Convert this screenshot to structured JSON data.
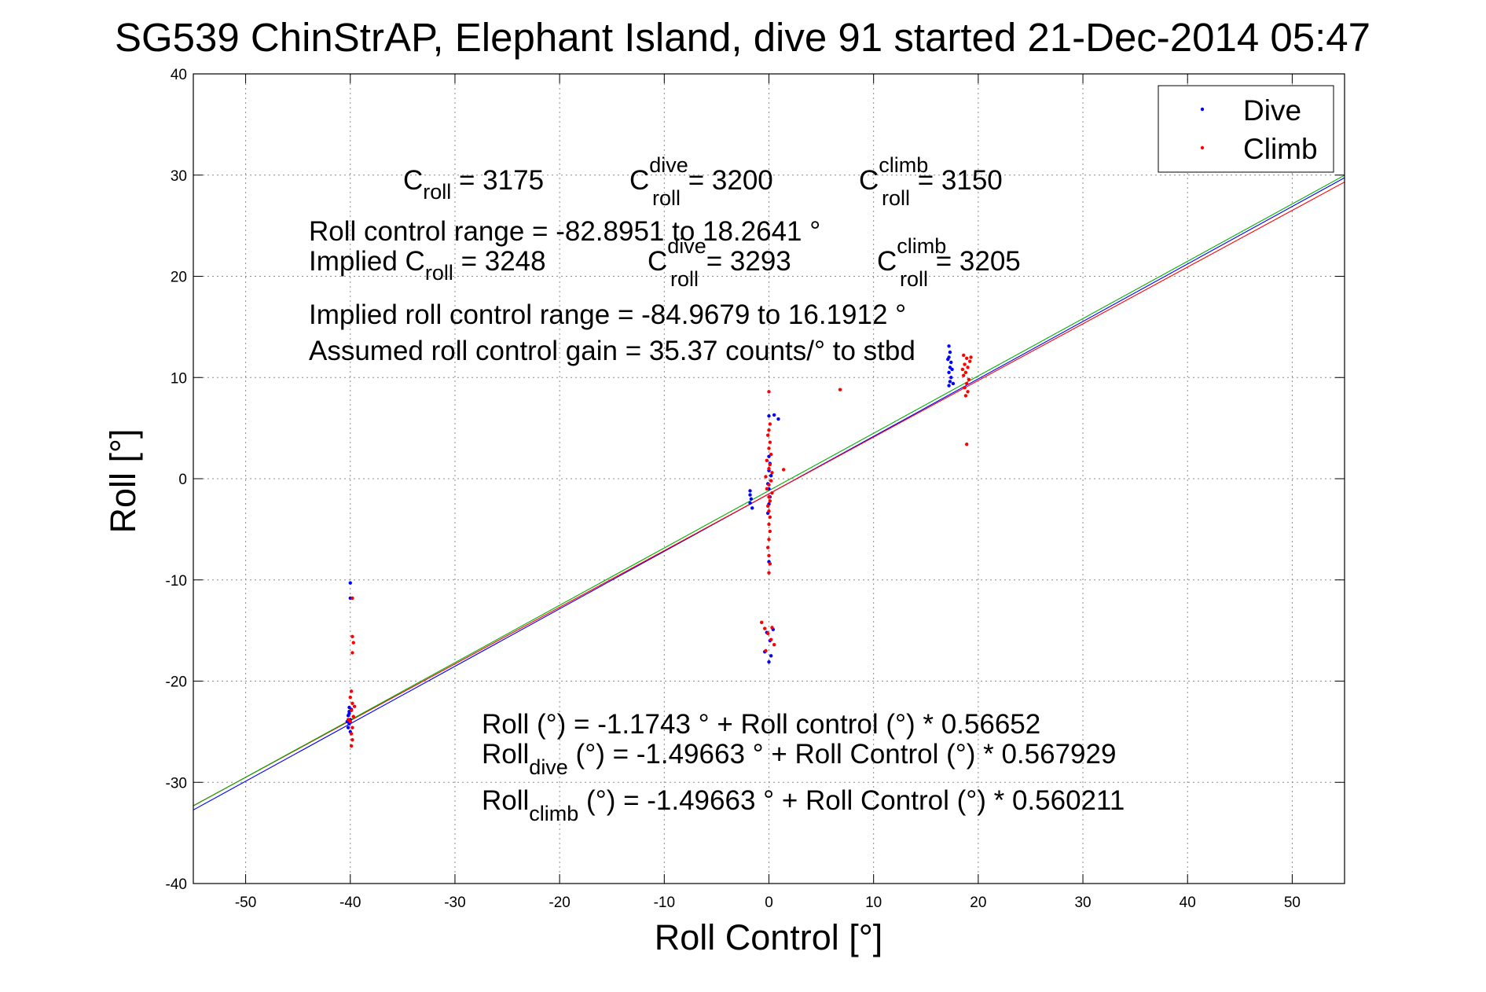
{
  "chart_data": {
    "type": "scatter",
    "title": "SG539 ChinStrAP, Elephant Island, dive 91 started 21-Dec-2014 05:47",
    "xlabel": "Roll Control [°]",
    "ylabel": "Roll [°]",
    "xlim": [
      -55,
      55
    ],
    "ylim": [
      -40,
      40
    ],
    "xticks": [
      -50,
      -40,
      -30,
      -20,
      -10,
      0,
      10,
      20,
      30,
      40,
      50
    ],
    "yticks": [
      -40,
      -30,
      -20,
      -10,
      0,
      10,
      20,
      30,
      40
    ],
    "grid": true,
    "legend_position": "top-right",
    "series": [
      {
        "name": "Dive",
        "color": "#0000ff",
        "marker": "point",
        "points": [
          [
            -40.0,
            -10.3
          ],
          [
            -40.0,
            -11.8
          ],
          [
            -40.1,
            -22.6
          ],
          [
            -40.1,
            -23.0
          ],
          [
            -40.2,
            -23.4
          ],
          [
            -40.0,
            -23.8
          ],
          [
            -40.1,
            -24.2
          ],
          [
            -40.2,
            -24.6
          ],
          [
            -40.0,
            -25.0
          ],
          [
            -40.1,
            -23.2
          ],
          [
            -39.9,
            -22.8
          ],
          [
            -40.3,
            -24.0
          ],
          [
            -1.8,
            -1.2
          ],
          [
            -1.8,
            -1.6
          ],
          [
            -1.7,
            -2.0
          ],
          [
            -1.8,
            -2.4
          ],
          [
            -1.6,
            -2.9
          ],
          [
            0.0,
            2.2
          ],
          [
            0.1,
            1.5
          ],
          [
            0.0,
            0.8
          ],
          [
            0.2,
            0.3
          ],
          [
            -0.1,
            -0.5
          ],
          [
            0.0,
            -1.0
          ],
          [
            0.1,
            -1.8
          ],
          [
            0.0,
            -2.5
          ],
          [
            -0.1,
            -3.4
          ],
          [
            0.0,
            6.2
          ],
          [
            0.5,
            6.3
          ],
          [
            0.9,
            5.9
          ],
          [
            0.0,
            -8.2
          ],
          [
            -0.2,
            -15.2
          ],
          [
            0.1,
            -16.0
          ],
          [
            -0.4,
            -17.1
          ],
          [
            0.2,
            -17.5
          ],
          [
            0.0,
            -18.1
          ],
          [
            0.4,
            -14.9
          ],
          [
            17.2,
            13.1
          ],
          [
            17.3,
            12.5
          ],
          [
            17.2,
            12.0
          ],
          [
            17.4,
            11.5
          ],
          [
            17.3,
            11.0
          ],
          [
            17.2,
            10.5
          ],
          [
            17.4,
            10.0
          ],
          [
            17.3,
            9.6
          ],
          [
            17.2,
            9.2
          ],
          [
            17.5,
            10.8
          ],
          [
            17.1,
            11.8
          ],
          [
            17.6,
            9.4
          ]
        ]
      },
      {
        "name": "Climb",
        "color": "#ff0000",
        "marker": "point",
        "points": [
          [
            -39.8,
            -11.8
          ],
          [
            -39.8,
            -15.6
          ],
          [
            -39.7,
            -16.2
          ],
          [
            -39.8,
            -17.2
          ],
          [
            -39.9,
            -21.0
          ],
          [
            -40.0,
            -21.6
          ],
          [
            -39.8,
            -22.2
          ],
          [
            -39.9,
            -22.9
          ],
          [
            -39.7,
            -23.5
          ],
          [
            -40.0,
            -24.0
          ],
          [
            -39.8,
            -24.6
          ],
          [
            -39.9,
            -25.2
          ],
          [
            -39.8,
            -25.8
          ],
          [
            -39.9,
            -26.4
          ],
          [
            -39.6,
            -22.5
          ],
          [
            -40.2,
            -23.8
          ],
          [
            0.0,
            8.6
          ],
          [
            0.1,
            5.4
          ],
          [
            0.0,
            4.8
          ],
          [
            -0.1,
            4.3
          ],
          [
            0.1,
            3.6
          ],
          [
            0.0,
            3.0
          ],
          [
            0.2,
            2.4
          ],
          [
            -0.2,
            1.8
          ],
          [
            0.1,
            1.4
          ],
          [
            0.0,
            1.0
          ],
          [
            0.3,
            0.6
          ],
          [
            -0.3,
            0.2
          ],
          [
            0.2,
            -0.2
          ],
          [
            0.0,
            -0.6
          ],
          [
            -0.2,
            -1.0
          ],
          [
            0.3,
            -1.4
          ],
          [
            0.0,
            -1.8
          ],
          [
            0.1,
            -2.2
          ],
          [
            -0.1,
            -2.7
          ],
          [
            0.0,
            -3.2
          ],
          [
            0.1,
            -3.8
          ],
          [
            0.0,
            -4.5
          ],
          [
            0.1,
            -5.2
          ],
          [
            0.0,
            -6.0
          ],
          [
            -0.1,
            -6.8
          ],
          [
            0.0,
            -7.6
          ],
          [
            0.1,
            -8.4
          ],
          [
            0.0,
            -9.3
          ],
          [
            1.4,
            0.9
          ],
          [
            -0.7,
            -14.2
          ],
          [
            -0.4,
            -14.8
          ],
          [
            -0.1,
            -15.3
          ],
          [
            0.2,
            -15.9
          ],
          [
            0.5,
            -16.4
          ],
          [
            -0.3,
            -17.0
          ],
          [
            0.3,
            -14.7
          ],
          [
            6.8,
            8.8
          ],
          [
            18.6,
            12.2
          ],
          [
            18.9,
            11.9
          ],
          [
            19.2,
            11.6
          ],
          [
            18.7,
            11.3
          ],
          [
            19.0,
            11.0
          ],
          [
            18.5,
            10.8
          ],
          [
            18.8,
            10.5
          ],
          [
            19.3,
            12.0
          ],
          [
            18.6,
            10.2
          ],
          [
            19.1,
            9.8
          ],
          [
            18.9,
            9.4
          ],
          [
            18.7,
            9.0
          ],
          [
            19.0,
            8.6
          ],
          [
            18.8,
            8.2
          ],
          [
            18.9,
            3.4
          ]
        ]
      }
    ],
    "fit_lines": [
      {
        "color": "#0000ff",
        "intercept": -1.49663,
        "slope": 0.567929
      },
      {
        "color": "#ff0000",
        "intercept": -1.49663,
        "slope": 0.560211
      },
      {
        "color": "#00b000",
        "intercept": -1.1743,
        "slope": 0.56652
      }
    ]
  },
  "annotations": {
    "c_roll": {
      "base": "C",
      "sub": "roll",
      "rest": " = 3175"
    },
    "c_roll_dive": {
      "base": "C",
      "sup": "dive",
      "sub": "roll",
      "rest": " = 3200"
    },
    "c_roll_climb": {
      "base": "C",
      "sup": "climb",
      "sub": "roll",
      "rest": " = 3150"
    },
    "roll_range": "Roll control range = -82.8951 to 18.2641 °",
    "implied_prefix": "Implied C",
    "implied_c_roll_sub": "roll",
    "implied_c_roll_rest": " = 3248",
    "implied_c_dive": {
      "base": "C",
      "sup": "dive",
      "sub": "roll",
      "rest": " = 3293"
    },
    "implied_c_climb": {
      "base": "C",
      "sup": "climb",
      "sub": "roll",
      "rest": " = 3205"
    },
    "implied_range": "Implied roll control range = -84.9679 to 16.1912 °",
    "assumed_gain": "Assumed roll control gain = 35.37 counts/° to stbd",
    "eq_all": "Roll (°) = -1.1743 ° + Roll control (°) * 0.56652",
    "eq_dive_base": "Roll",
    "eq_dive_sub": "dive",
    "eq_dive_rest": " (°) = -1.49663 ° + Roll Control (°) * 0.567929",
    "eq_climb_base": "Roll",
    "eq_climb_sub": "climb",
    "eq_climb_rest": " (°) = -1.49663 ° + Roll Control (°) * 0.560211"
  }
}
